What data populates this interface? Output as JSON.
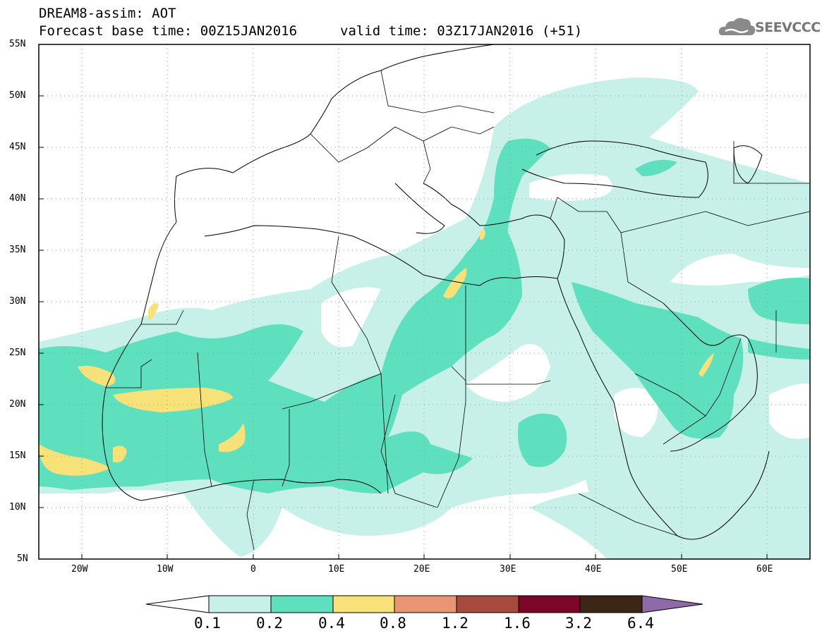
{
  "header": {
    "line1": "DREAM8-assim: AOT",
    "line2_base": "Forecast base time: 00Z15JAN2016",
    "line2_valid": "valid time: 03Z17JAN2016 (+51)"
  },
  "logo": {
    "text": "SEEVCCC",
    "icon": "cloud-logo-icon"
  },
  "map": {
    "lat_labels": [
      "55N",
      "50N",
      "45N",
      "40N",
      "35N",
      "30N",
      "25N",
      "20N",
      "15N",
      "10N",
      "5N"
    ],
    "lon_labels": [
      "20W",
      "10W",
      "0",
      "10E",
      "20E",
      "30E",
      "40E",
      "50E",
      "60E"
    ],
    "grid": "dotted"
  },
  "colorbar": {
    "labels": [
      "0.1",
      "0.2",
      "0.4",
      "0.8",
      "1.2",
      "1.6",
      "3.2",
      "6.4"
    ],
    "colors": [
      "#ffffff",
      "#c6f0e8",
      "#5ee0bf",
      "#f7e27a",
      "#e99473",
      "#a8493e",
      "#7b0628",
      "#3c2616",
      "#8e6aa8"
    ]
  },
  "colors": {
    "low": "#c6f0e8",
    "mid": "#5ee0bf",
    "high": "#f7e27a"
  }
}
